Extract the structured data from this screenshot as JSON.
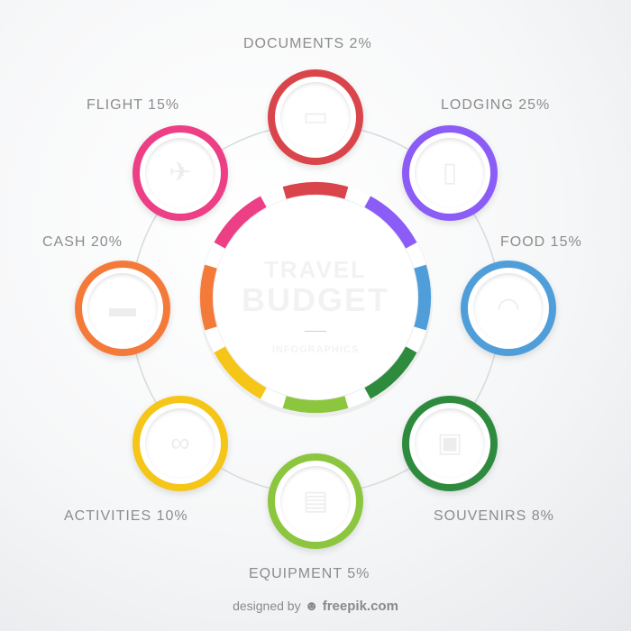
{
  "center": {
    "title_line1": "TRAVEL",
    "title_line2": "BUDGET",
    "subtitle": "INFOGRAPHICS"
  },
  "items": [
    {
      "label": "DOCUMENTS 2%",
      "color": "#d9454a",
      "icon": "document-icon",
      "glyph": "▭"
    },
    {
      "label": "LODGING 25%",
      "color": "#8b5cf6",
      "icon": "door-hanger-icon",
      "glyph": "▯"
    },
    {
      "label": "FOOD 15%",
      "color": "#4f9ed9",
      "icon": "cloche-icon",
      "glyph": "◠"
    },
    {
      "label": "SOUVENIRS 8%",
      "color": "#2e8b3e",
      "icon": "shopping-bag-icon",
      "glyph": "▣"
    },
    {
      "label": "EQUIPMENT 5%",
      "color": "#8cc63f",
      "icon": "backpack-icon",
      "glyph": "▤"
    },
    {
      "label": "ACTIVITIES 10%",
      "color": "#f5c518",
      "icon": "binoculars-icon",
      "glyph": "∞"
    },
    {
      "label": "CASH 20%",
      "color": "#f47a3a",
      "icon": "money-icon",
      "glyph": "▬"
    },
    {
      "label": "FLIGHT 15%",
      "color": "#ec3f86",
      "icon": "airplane-icon",
      "glyph": "✈"
    }
  ],
  "ring_segment_colors": [
    "#d9454a",
    "#8b5cf6",
    "#4f9ed9",
    "#2e8b3e",
    "#8cc63f",
    "#f5c518",
    "#f47a3a",
    "#ec3f86"
  ],
  "credit": {
    "designed": "designed by",
    "brand": "freepik.com"
  }
}
